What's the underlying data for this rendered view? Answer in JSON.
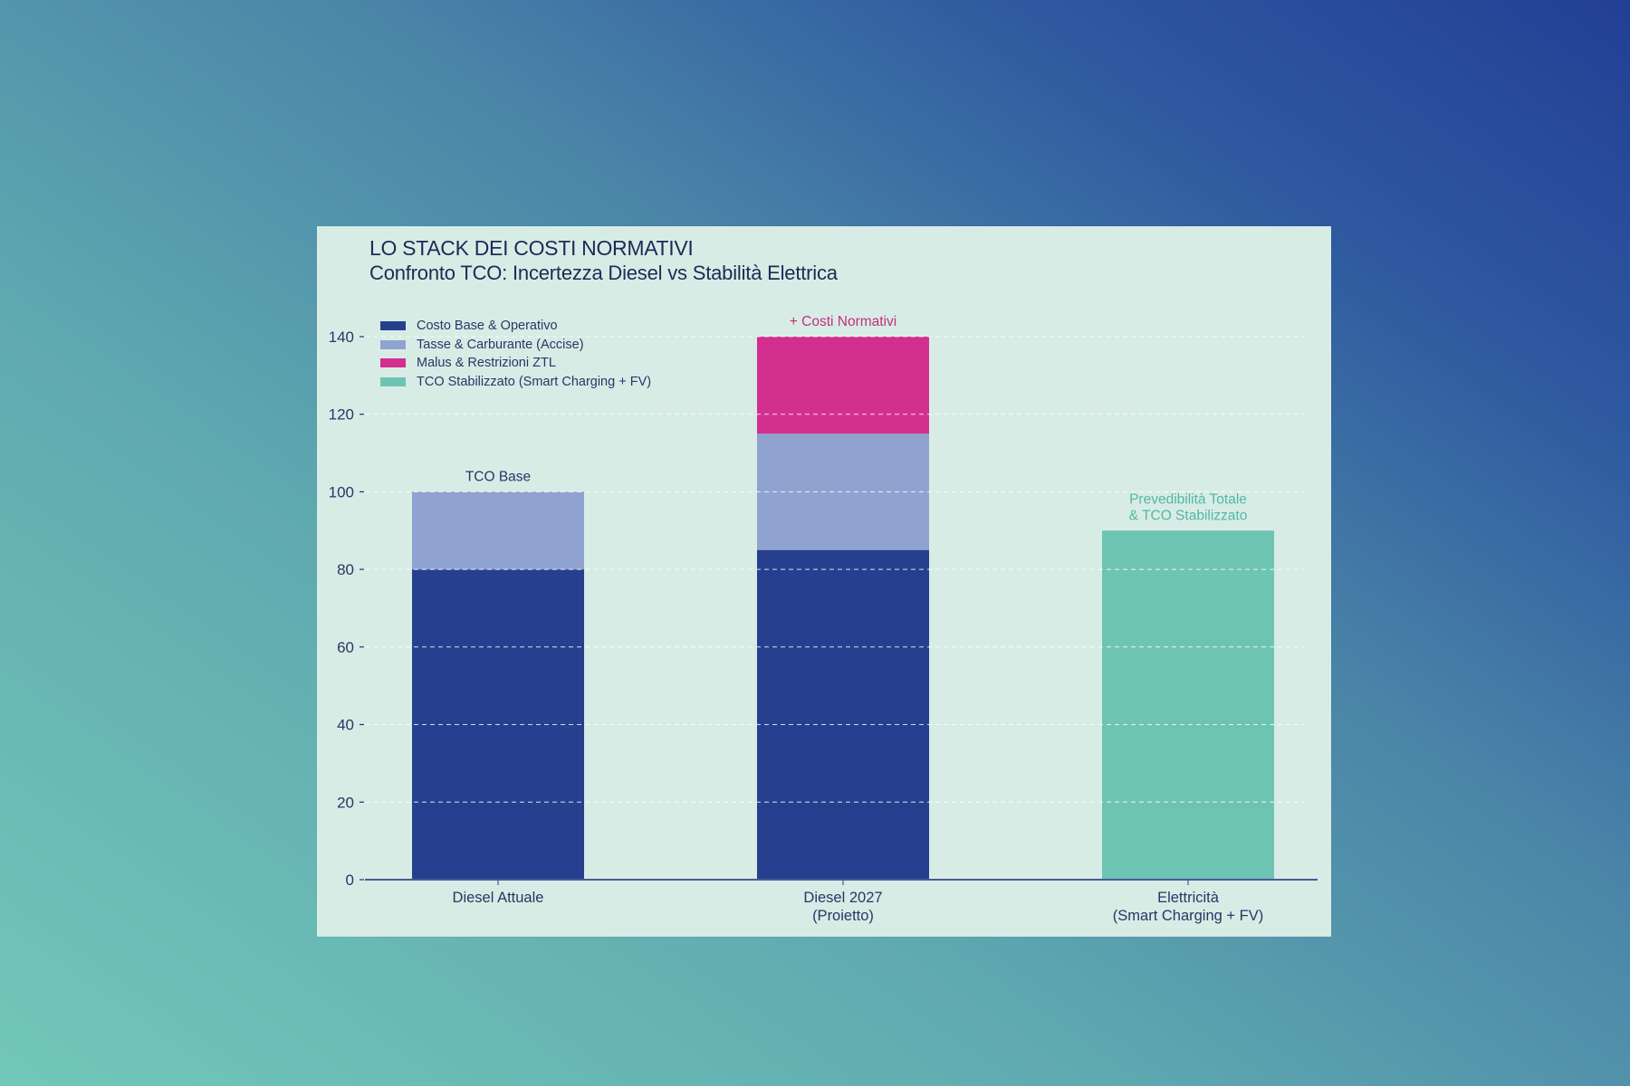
{
  "page": {
    "background_colors": [
      "#72c8b8",
      "#233f95"
    ],
    "panel_color": "#d8ece6"
  },
  "header": {
    "title": "LO STACK DEI COSTI NORMATIVI",
    "subtitle": "Confronto TCO: Incertezza Diesel vs Stabilità Elettrica"
  },
  "legend": {
    "items": [
      {
        "label": "Costo Base & Operativo",
        "color": "#26408f"
      },
      {
        "label": "Tasse & Carburante (Accise)",
        "color": "#8fa2d0"
      },
      {
        "label": "Malus & Restrizioni ZTL",
        "color": "#d32f8f"
      },
      {
        "label": "TCO Stabilizzato (Smart Charging + FV)",
        "color": "#6ec4b3"
      }
    ]
  },
  "chart_data": {
    "type": "bar",
    "stacked": true,
    "title": "LO STACK DEI COSTI NORMATIVI",
    "subtitle": "Confronto TCO: Incertezza Diesel vs Stabilità Elettrica",
    "xlabel": "",
    "ylabel": "",
    "ylim": [
      0,
      140
    ],
    "yticks": [
      0,
      20,
      40,
      60,
      80,
      100,
      120,
      140
    ],
    "grid": true,
    "legend_position": "top-left",
    "categories": [
      [
        "Diesel Attuale"
      ],
      [
        "Diesel 2027",
        "(Proietto)"
      ],
      [
        "Elettricità",
        "(Smart Charging + FV)"
      ]
    ],
    "series": [
      {
        "name": "Costo Base & Operativo",
        "color": "#26408f",
        "values": [
          80,
          85,
          0
        ]
      },
      {
        "name": "Tasse & Carburante (Accise)",
        "color": "#8fa2d0",
        "values": [
          20,
          30,
          0
        ]
      },
      {
        "name": "Malus & Restrizioni ZTL",
        "color": "#d32f8f",
        "values": [
          0,
          25,
          0
        ]
      },
      {
        "name": "TCO Stabilizzato (Smart Charging + FV)",
        "color": "#6ec4b3",
        "values": [
          0,
          0,
          90
        ]
      }
    ],
    "annotations": [
      {
        "category_index": 0,
        "lines": [
          "TCO Base"
        ],
        "color": "#2a3566"
      },
      {
        "category_index": 1,
        "lines": [
          "+ Costi Normativi"
        ],
        "color": "#c2307f"
      },
      {
        "category_index": 2,
        "lines": [
          "Prevedibilità Totale",
          "& TCO Stabilizzato"
        ],
        "color": "#52b8a2"
      }
    ]
  }
}
